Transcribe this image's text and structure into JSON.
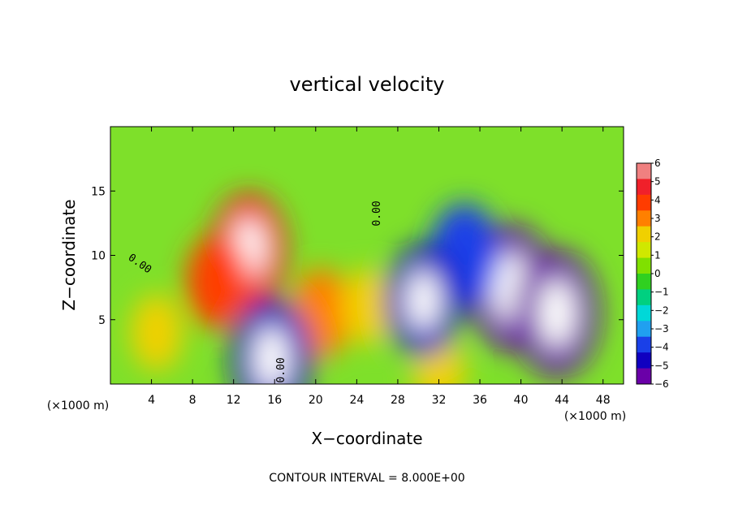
{
  "chart_data": {
    "type": "heatmap",
    "title": "vertical velocity",
    "xlabel": "X−coordinate",
    "ylabel": "Z−coordinate",
    "x_unit_label": "(×1000 m)",
    "z_unit_label": "(×1000 m)",
    "xlim": [
      0,
      50
    ],
    "ylim": [
      0,
      20
    ],
    "x_ticks": [
      4,
      8,
      12,
      16,
      20,
      24,
      28,
      32,
      36,
      40,
      44,
      48
    ],
    "x_tick_labels": [
      "4",
      "8",
      "12",
      "16",
      "20",
      "24",
      "28",
      "32",
      "36",
      "40",
      "44",
      "48"
    ],
    "y_ticks": [
      5,
      10,
      15
    ],
    "y_tick_labels": [
      "5",
      "10",
      "15"
    ],
    "colorbar": {
      "min": -6,
      "max": 6,
      "labels": [
        "6",
        "5",
        "4",
        "3",
        "2",
        "1",
        "0",
        "−1",
        "−2",
        "−3",
        "−4",
        "−5",
        "−6"
      ],
      "colors": [
        "#f08080",
        "#f0202a",
        "#ff3c00",
        "#ff8000",
        "#f0d000",
        "#d0e800",
        "#80e000",
        "#30d020",
        "#00d080",
        "#00d8d8",
        "#20a0f0",
        "#1a40e8",
        "#1000c0",
        "#6a00a8"
      ]
    },
    "contour_labels": [
      "0.00",
      "0.00",
      "0.00"
    ],
    "cells": [
      {
        "x": 13.5,
        "z": 10.5,
        "w": 5.0
      },
      {
        "x": 10.5,
        "z": 8.0,
        "w": 3.8
      },
      {
        "x": 20.5,
        "z": 5.5,
        "w": 3.5
      },
      {
        "x": 4.5,
        "z": 4.0,
        "w": 2.5
      },
      {
        "x": 25.0,
        "z": 6.0,
        "w": 2.5
      },
      {
        "x": 32.0,
        "z": 1.0,
        "w": 2.5
      },
      {
        "x": 15.7,
        "z": 2.0,
        "w": -5.5
      },
      {
        "x": 39.0,
        "z": 7.5,
        "w": -6.0
      },
      {
        "x": 43.5,
        "z": 5.5,
        "w": -6.0
      },
      {
        "x": 34.5,
        "z": 10.0,
        "w": -4.5
      },
      {
        "x": 30.5,
        "z": 6.5,
        "w": -5.0
      }
    ]
  },
  "contour_note": "CONTOUR INTERVAL = 8.000E+00"
}
